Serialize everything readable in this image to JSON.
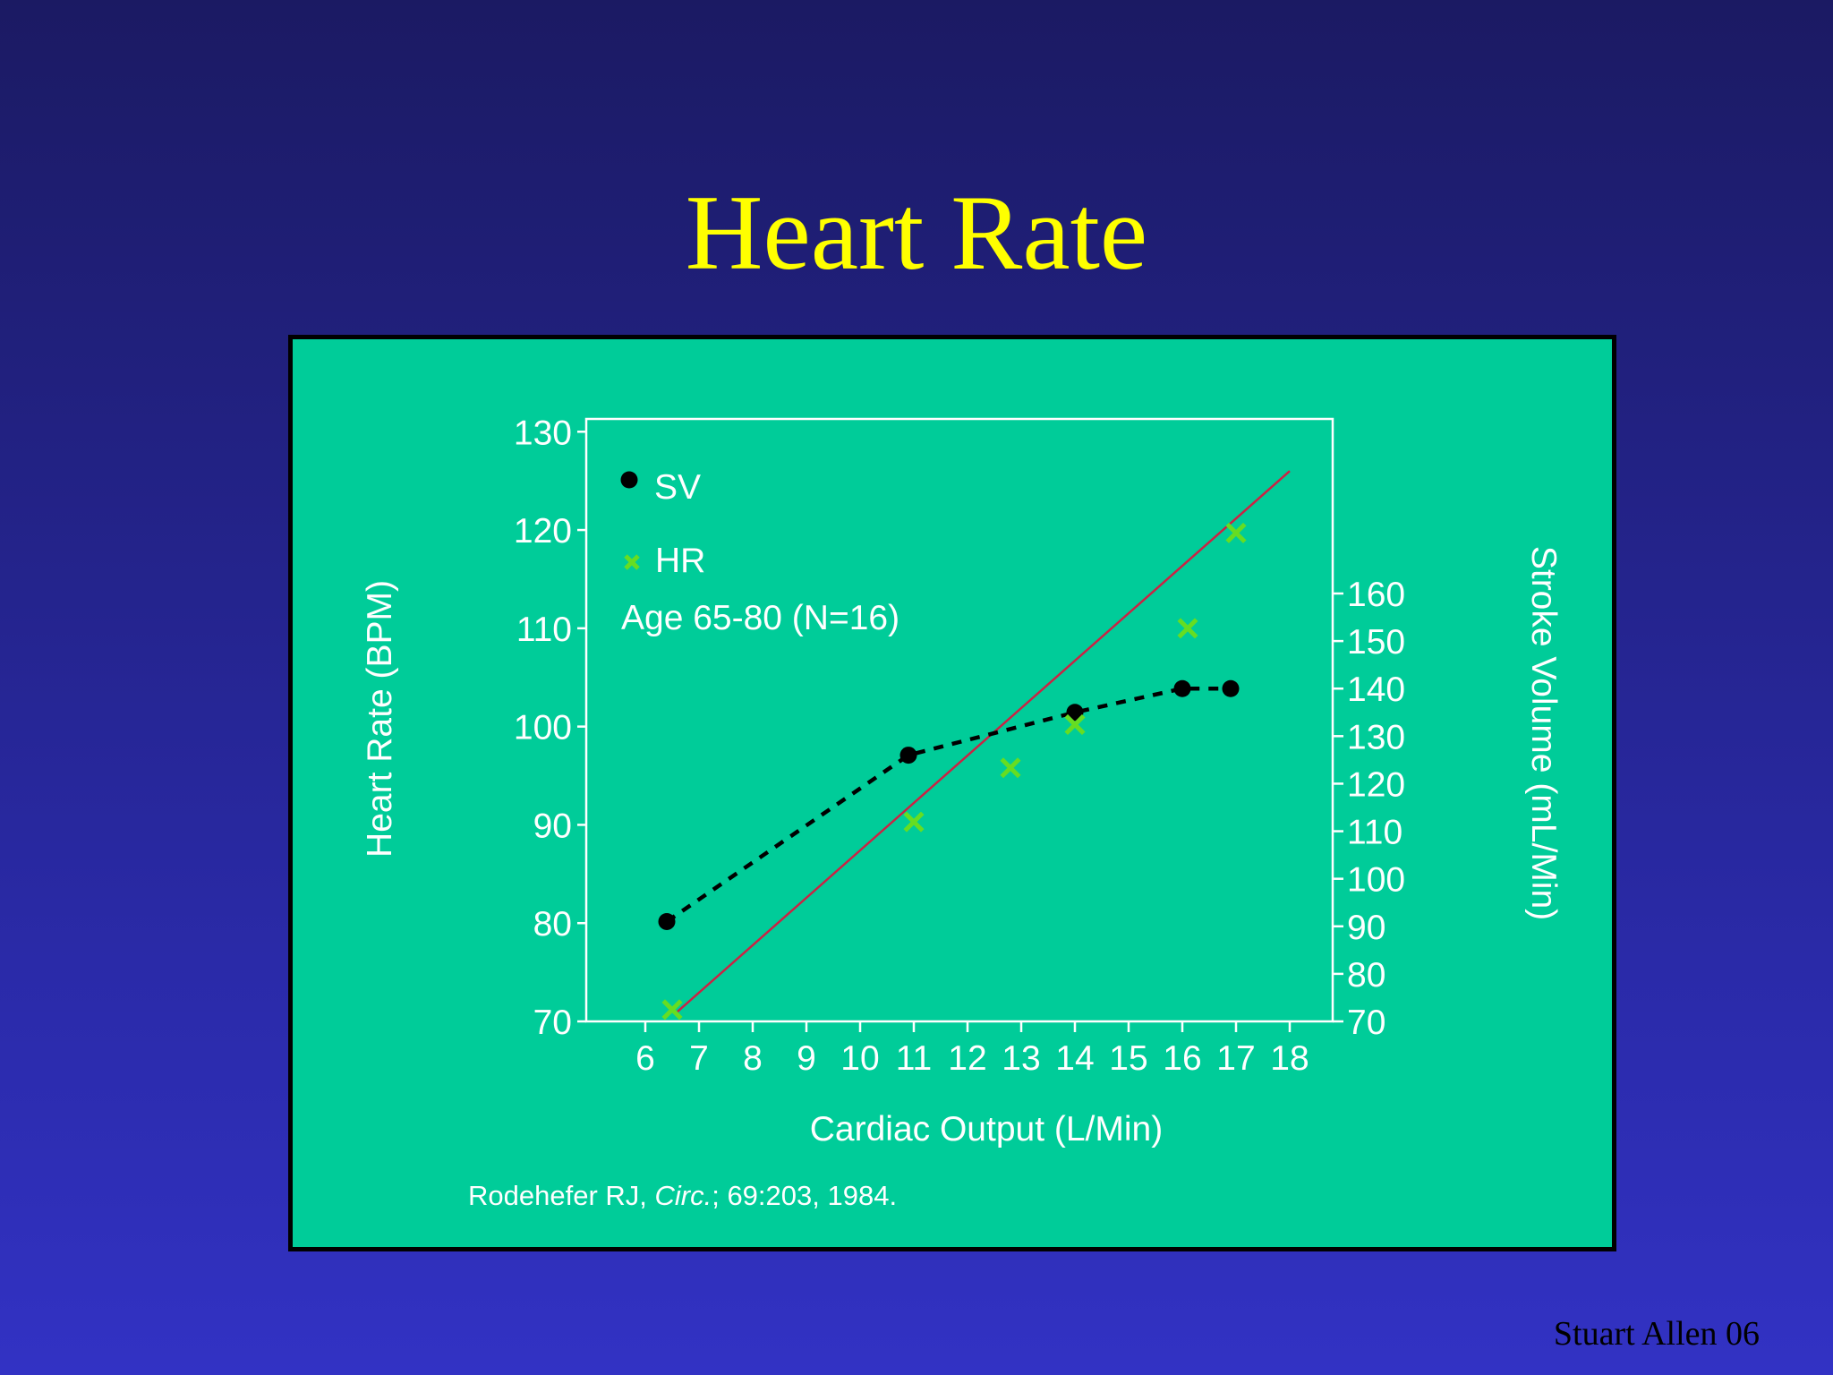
{
  "slide": {
    "title": "Heart Rate",
    "footer": "Stuart Allen 06"
  },
  "citation": {
    "author": "Rodehefer RJ, ",
    "journal": "Circ.",
    "rest": "; 69:203, 1984."
  },
  "colors": {
    "panel": "#00cc99",
    "sv_marker": "#000000",
    "hr_marker": "#66dd22",
    "fit_line": "#cc2244",
    "axis": "#ffffff",
    "title": "#ffff00"
  },
  "chart_data": {
    "type": "scatter",
    "xlabel": "Cardiac Output (L/Min)",
    "ylabel": "Heart Rate (BPM)",
    "y2label": "Stroke Volume (mL/Min)",
    "xlim": [
      4.9,
      18.8
    ],
    "ylim": [
      70,
      131.3
    ],
    "y2lim": [
      70,
      160
    ],
    "x_ticks": [
      6,
      7,
      8,
      9,
      10,
      11,
      12,
      13,
      14,
      15,
      16,
      17,
      18
    ],
    "y_ticks": [
      70,
      80,
      90,
      100,
      110,
      120,
      130
    ],
    "y2_ticks": [
      70,
      80,
      90,
      100,
      110,
      120,
      130,
      140,
      150,
      160
    ],
    "annotation": "Age 65-80 (N=16)",
    "series": [
      {
        "name": "SV",
        "axis": "y2",
        "marker": "circle",
        "line": "dashed",
        "points": [
          [
            6.4,
            91
          ],
          [
            10.9,
            126
          ],
          [
            14.0,
            135
          ],
          [
            16.0,
            140
          ],
          [
            16.9,
            140
          ]
        ]
      },
      {
        "name": "HR",
        "axis": "y",
        "marker": "x",
        "points": [
          [
            6.5,
            71.2
          ],
          [
            11.0,
            90.3
          ],
          [
            12.8,
            95.8
          ],
          [
            14.0,
            100.2
          ],
          [
            16.1,
            110.0
          ],
          [
            17.0,
            119.7
          ]
        ]
      }
    ],
    "fit_line": {
      "axis": "y",
      "points": [
        [
          6.6,
          71.0
        ],
        [
          18.0,
          126.0
        ]
      ]
    }
  }
}
